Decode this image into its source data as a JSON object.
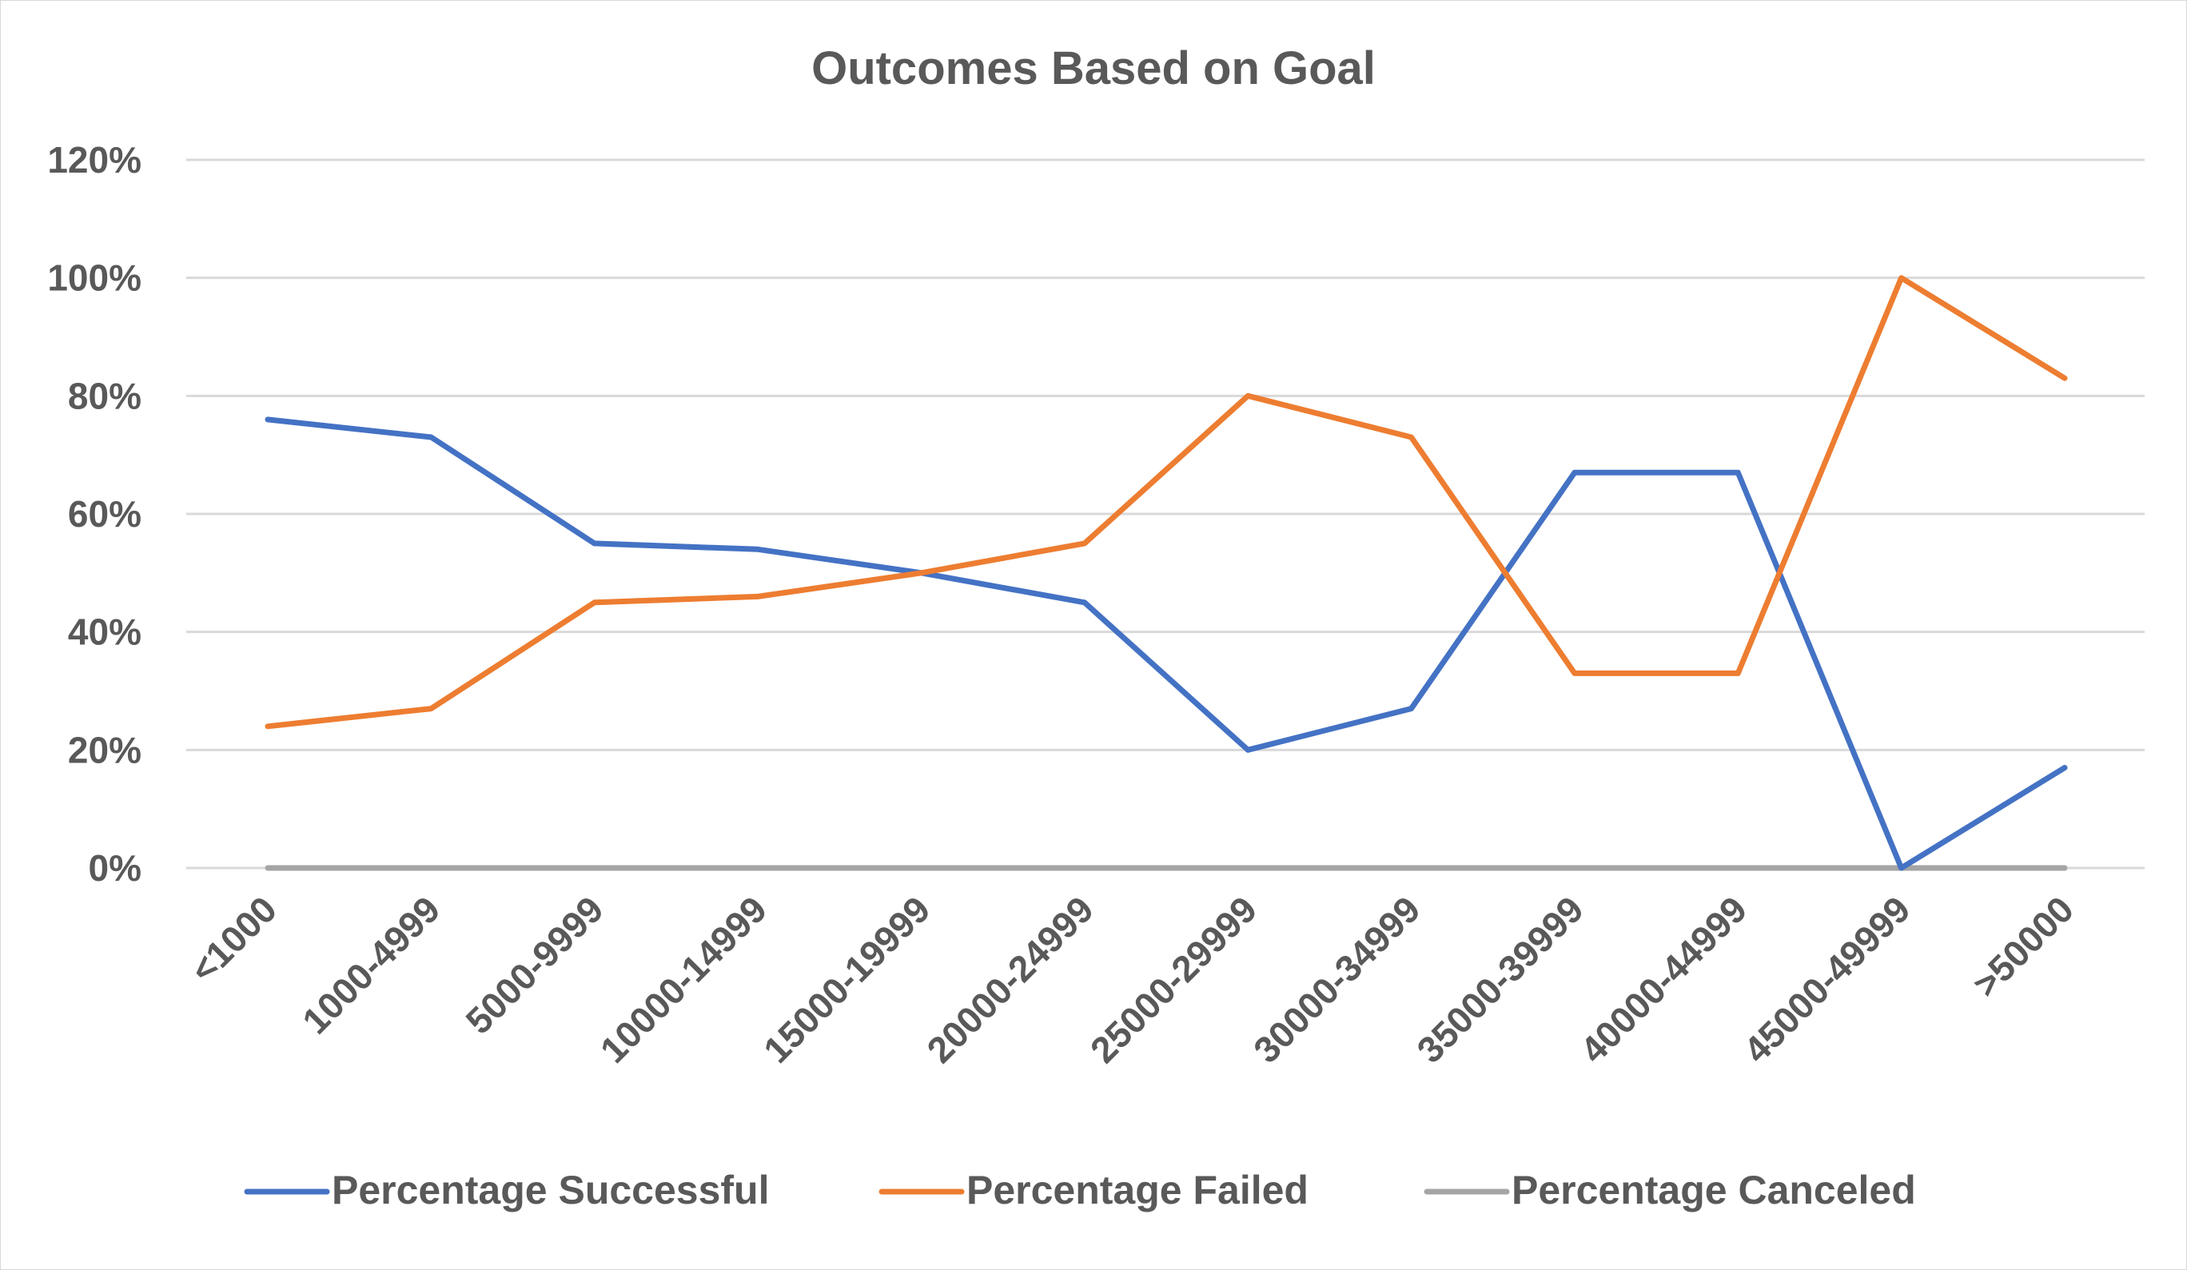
{
  "chart_data": {
    "type": "line",
    "title": "Outcomes Based on Goal",
    "xlabel": "",
    "ylabel": "",
    "categories": [
      "<1000",
      "1000-4999",
      "5000-9999",
      "10000-14999",
      "15000-19999",
      "20000-24999",
      "25000-29999",
      "30000-34999",
      "35000-39999",
      "40000-44999",
      "45000-49999",
      ">50000"
    ],
    "y_ticks": [
      "0%",
      "20%",
      "40%",
      "60%",
      "80%",
      "100%",
      "120%"
    ],
    "ylim": [
      0,
      1.2
    ],
    "grid": true,
    "legend_position": "bottom",
    "series": [
      {
        "name": "Percentage Successful",
        "color": "#4472C4",
        "values": [
          0.76,
          0.73,
          0.55,
          0.54,
          0.5,
          0.45,
          0.2,
          0.27,
          0.67,
          0.67,
          0.0,
          0.17
        ]
      },
      {
        "name": "Percentage Failed",
        "color": "#ED7D31",
        "values": [
          0.24,
          0.27,
          0.45,
          0.46,
          0.5,
          0.55,
          0.8,
          0.73,
          0.33,
          0.33,
          1.0,
          0.83
        ]
      },
      {
        "name": "Percentage Canceled",
        "color": "#A5A5A5",
        "values": [
          0,
          0,
          0,
          0,
          0,
          0,
          0,
          0,
          0,
          0,
          0,
          0
        ]
      }
    ]
  }
}
